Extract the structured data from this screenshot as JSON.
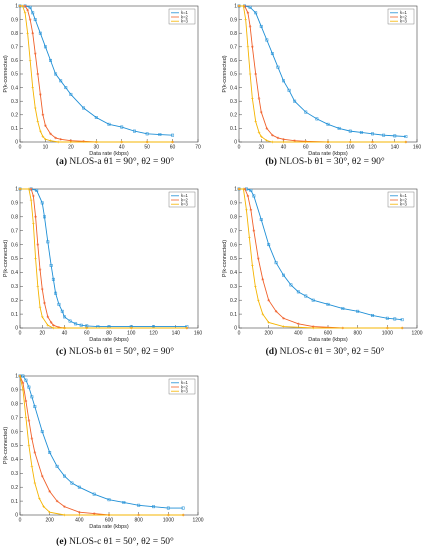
{
  "colors": {
    "k1": "#1f8fd6",
    "k2": "#f0602a",
    "k3": "#f5b400"
  },
  "chart_data": [
    {
      "type": "line",
      "caption_label": "(a)",
      "caption_text": "NLOS-a θ1 = 90°, θ2 = 90°",
      "xlabel": "Data rate (kbps)",
      "ylabel": "P(k-connected)",
      "xlim": [
        0,
        70
      ],
      "ylim": [
        0,
        1
      ],
      "xticks": [
        0,
        10,
        20,
        30,
        40,
        50,
        60,
        70
      ],
      "yticks": [
        0,
        0.1,
        0.2,
        0.3,
        0.4,
        0.5,
        0.6,
        0.7,
        0.8,
        0.9,
        1
      ],
      "legend": "top-right",
      "series": [
        {
          "name": "k=1",
          "color": "#1f8fd6",
          "x": [
            0,
            2,
            4,
            5,
            6,
            8,
            10,
            12,
            14,
            16,
            18,
            20,
            25,
            30,
            35,
            40,
            45,
            50,
            55,
            60
          ],
          "y": [
            1,
            1,
            0.99,
            0.95,
            0.9,
            0.8,
            0.7,
            0.6,
            0.5,
            0.45,
            0.4,
            0.35,
            0.25,
            0.18,
            0.13,
            0.11,
            0.08,
            0.06,
            0.055,
            0.05
          ]
        },
        {
          "name": "k=2",
          "color": "#f0602a",
          "x": [
            0,
            2,
            3,
            4,
            5,
            6,
            7,
            8,
            9,
            10,
            12,
            14,
            16,
            20,
            25,
            30,
            40,
            50,
            60
          ],
          "y": [
            1,
            1,
            0.97,
            0.9,
            0.8,
            0.65,
            0.5,
            0.35,
            0.2,
            0.12,
            0.06,
            0.03,
            0.02,
            0.01,
            0.005,
            0,
            0,
            0,
            0
          ]
        },
        {
          "name": "k=3",
          "color": "#f5b400",
          "x": [
            0,
            1,
            2,
            3,
            4,
            5,
            6,
            7,
            8,
            9,
            10,
            12,
            15,
            20,
            30,
            40,
            50,
            60
          ],
          "y": [
            1,
            1,
            0.95,
            0.8,
            0.6,
            0.4,
            0.25,
            0.15,
            0.08,
            0.04,
            0.02,
            0.01,
            0,
            0,
            0,
            0,
            0,
            0
          ]
        }
      ]
    },
    {
      "type": "line",
      "caption_label": "(b)",
      "caption_text": "NLOS-b θ1 = 30°, θ2 = 90°",
      "xlabel": "Data rate (kbps)",
      "ylabel": "P(k-connected)",
      "xlim": [
        0,
        160
      ],
      "ylim": [
        0,
        1
      ],
      "xticks": [
        0,
        20,
        40,
        60,
        80,
        100,
        120,
        140,
        160
      ],
      "yticks": [
        0,
        0.1,
        0.2,
        0.3,
        0.4,
        0.5,
        0.6,
        0.7,
        0.8,
        0.9,
        1
      ],
      "legend": "top-right",
      "series": [
        {
          "name": "k=1",
          "color": "#1f8fd6",
          "x": [
            0,
            5,
            10,
            15,
            20,
            25,
            30,
            35,
            40,
            45,
            50,
            60,
            70,
            80,
            90,
            100,
            110,
            120,
            130,
            140,
            150
          ],
          "y": [
            1,
            1,
            0.99,
            0.95,
            0.85,
            0.75,
            0.65,
            0.55,
            0.45,
            0.38,
            0.3,
            0.22,
            0.17,
            0.13,
            0.1,
            0.08,
            0.07,
            0.06,
            0.05,
            0.045,
            0.04
          ]
        },
        {
          "name": "k=2",
          "color": "#f0602a",
          "x": [
            0,
            5,
            8,
            10,
            12,
            15,
            18,
            20,
            25,
            30,
            35,
            40,
            50,
            60,
            80,
            100,
            120,
            150
          ],
          "y": [
            1,
            1,
            0.95,
            0.85,
            0.7,
            0.5,
            0.32,
            0.22,
            0.1,
            0.05,
            0.03,
            0.02,
            0.01,
            0.005,
            0,
            0,
            0,
            0
          ]
        },
        {
          "name": "k=3",
          "color": "#f5b400",
          "x": [
            0,
            4,
            6,
            8,
            10,
            12,
            15,
            18,
            20,
            25,
            30,
            40,
            60,
            80,
            100,
            150
          ],
          "y": [
            1,
            1,
            0.9,
            0.7,
            0.5,
            0.32,
            0.15,
            0.07,
            0.04,
            0.01,
            0,
            0,
            0,
            0,
            0,
            0
          ]
        }
      ]
    },
    {
      "type": "line",
      "caption_label": "(c)",
      "caption_text": "NLOS-b θ1 = 50°, θ2 = 90°",
      "xlabel": "Data rate (kbps)",
      "ylabel": "P(k-connected)",
      "xlim": [
        0,
        160
      ],
      "ylim": [
        0,
        1
      ],
      "xticks": [
        0,
        20,
        40,
        60,
        80,
        100,
        120,
        140,
        160
      ],
      "yticks": [
        0,
        0.1,
        0.2,
        0.3,
        0.4,
        0.5,
        0.6,
        0.7,
        0.8,
        0.9,
        1
      ],
      "legend": "top-right",
      "series": [
        {
          "name": "k=1",
          "color": "#1f8fd6",
          "x": [
            0,
            10,
            15,
            20,
            22,
            25,
            28,
            30,
            32,
            35,
            38,
            40,
            45,
            50,
            55,
            60,
            70,
            80,
            100,
            120,
            150
          ],
          "y": [
            1,
            1,
            0.99,
            0.9,
            0.8,
            0.62,
            0.45,
            0.35,
            0.25,
            0.17,
            0.12,
            0.08,
            0.05,
            0.03,
            0.02,
            0.015,
            0.01,
            0.01,
            0.01,
            0.01,
            0.01
          ]
        },
        {
          "name": "k=2",
          "color": "#f0602a",
          "x": [
            0,
            10,
            12,
            14,
            16,
            18,
            20,
            22,
            25,
            28,
            30,
            35,
            40,
            60,
            100,
            150
          ],
          "y": [
            1,
            1,
            0.95,
            0.8,
            0.6,
            0.42,
            0.28,
            0.18,
            0.08,
            0.04,
            0.02,
            0.005,
            0,
            0,
            0,
            0
          ]
        },
        {
          "name": "k=3",
          "color": "#f5b400",
          "x": [
            0,
            8,
            10,
            12,
            14,
            16,
            18,
            20,
            25,
            30,
            40,
            60,
            100,
            150
          ],
          "y": [
            1,
            1,
            0.92,
            0.75,
            0.5,
            0.3,
            0.15,
            0.08,
            0.02,
            0,
            0,
            0,
            0,
            0
          ]
        }
      ]
    },
    {
      "type": "line",
      "caption_label": "(d)",
      "caption_text": "NLOS-c θ1 = 30°, θ2 = 50°",
      "xlabel": "Data rate (kbps)",
      "ylabel": "P(k-connected)",
      "xlim": [
        0,
        1200
      ],
      "ylim": [
        0,
        1
      ],
      "xticks": [
        0,
        200,
        400,
        600,
        800,
        1000,
        1200
      ],
      "yticks": [
        0,
        0.1,
        0.2,
        0.3,
        0.4,
        0.5,
        0.6,
        0.7,
        0.8,
        0.9,
        1
      ],
      "legend": "top-right",
      "series": [
        {
          "name": "k=1",
          "color": "#1f8fd6",
          "x": [
            0,
            50,
            80,
            100,
            150,
            200,
            250,
            300,
            350,
            400,
            450,
            500,
            600,
            700,
            800,
            900,
            1000,
            1050,
            1100
          ],
          "y": [
            1,
            1,
            0.99,
            0.95,
            0.78,
            0.6,
            0.47,
            0.38,
            0.31,
            0.26,
            0.23,
            0.2,
            0.17,
            0.14,
            0.12,
            0.09,
            0.07,
            0.065,
            0.06
          ]
        },
        {
          "name": "k=2",
          "color": "#f0602a",
          "x": [
            0,
            40,
            60,
            80,
            100,
            130,
            160,
            200,
            250,
            300,
            400,
            500,
            700,
            1000,
            1100
          ],
          "y": [
            1,
            1,
            0.95,
            0.85,
            0.7,
            0.5,
            0.35,
            0.2,
            0.12,
            0.07,
            0.03,
            0.01,
            0,
            0,
            0
          ]
        },
        {
          "name": "k=3",
          "color": "#f5b400",
          "x": [
            0,
            30,
            50,
            70,
            90,
            110,
            130,
            160,
            200,
            300,
            500,
            1000,
            1100
          ],
          "y": [
            1,
            1,
            0.85,
            0.65,
            0.45,
            0.3,
            0.2,
            0.1,
            0.04,
            0.01,
            0,
            0,
            0
          ]
        }
      ]
    },
    {
      "type": "line",
      "caption_label": "(e)",
      "caption_text": "NLOS-c θ1 = 50°, θ2 = 50°",
      "xlabel": "Data rate (kbps)",
      "ylabel": "P(k-connected)",
      "xlim": [
        0,
        1200
      ],
      "ylim": [
        0,
        1
      ],
      "xticks": [
        0,
        200,
        400,
        600,
        800,
        1000,
        1200
      ],
      "yticks": [
        0,
        0.1,
        0.2,
        0.3,
        0.4,
        0.5,
        0.6,
        0.7,
        0.8,
        0.9,
        1
      ],
      "legend": "top-right",
      "series": [
        {
          "name": "k=1",
          "color": "#1f8fd6",
          "x": [
            0,
            20,
            40,
            60,
            80,
            100,
            150,
            200,
            250,
            300,
            350,
            400,
            500,
            600,
            700,
            800,
            900,
            1000,
            1100
          ],
          "y": [
            1,
            1,
            0.97,
            0.92,
            0.85,
            0.78,
            0.6,
            0.45,
            0.35,
            0.28,
            0.23,
            0.2,
            0.15,
            0.11,
            0.09,
            0.07,
            0.06,
            0.05,
            0.05
          ]
        },
        {
          "name": "k=2",
          "color": "#f0602a",
          "x": [
            0,
            20,
            40,
            60,
            80,
            100,
            150,
            200,
            250,
            300,
            400,
            500,
            600,
            800,
            1000,
            1100
          ],
          "y": [
            1,
            0.95,
            0.82,
            0.68,
            0.55,
            0.45,
            0.28,
            0.17,
            0.1,
            0.06,
            0.02,
            0.01,
            0,
            0,
            0,
            0
          ]
        },
        {
          "name": "k=3",
          "color": "#f5b400",
          "x": [
            0,
            20,
            40,
            60,
            80,
            100,
            130,
            160,
            200,
            300,
            400,
            600,
            1000,
            1100
          ],
          "y": [
            1,
            0.9,
            0.7,
            0.5,
            0.35,
            0.23,
            0.12,
            0.06,
            0.02,
            0,
            0,
            0,
            0,
            0
          ]
        }
      ]
    }
  ]
}
